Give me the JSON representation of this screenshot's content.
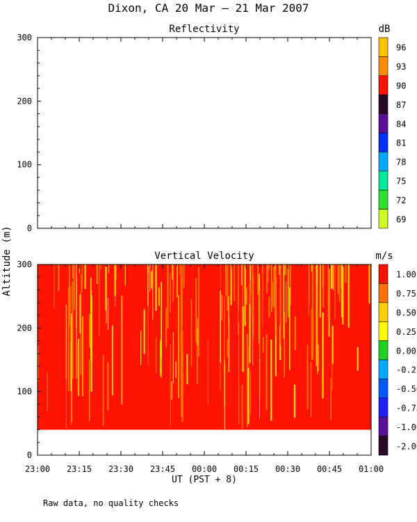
{
  "title": "Dixon, CA 20 Mar — 21 Mar 2007",
  "ylabel": "Altitude (m)",
  "xlabel": "UT  (PST + 8)",
  "footnote": "Raw data, no quality checks",
  "x_ticks": [
    "23:00",
    "23:15",
    "23:30",
    "23:45",
    "00:00",
    "00:15",
    "00:30",
    "00:45",
    "01:00"
  ],
  "chart_data": [
    {
      "type": "heatmap",
      "title": "Reflectivity",
      "unit": "dB",
      "xlim": [
        "23:00",
        "01:00"
      ],
      "ylim": [
        0,
        300
      ],
      "y_ticks": [
        0,
        100,
        200,
        300
      ],
      "data": "empty",
      "colorbar": {
        "labels": [
          "96",
          "93",
          "90",
          "87",
          "84",
          "81",
          "78",
          "75",
          "72",
          "69"
        ],
        "colors": [
          "#ffc400",
          "#ff8c00",
          "#ff1200",
          "#2a0828",
          "#5b0f9a",
          "#0030ff",
          "#00a8ff",
          "#00e89a",
          "#30e030",
          "#ccff22"
        ]
      }
    },
    {
      "type": "heatmap",
      "title": "Vertical Velocity",
      "unit": "m/s",
      "xlim": [
        "23:00",
        "01:00"
      ],
      "ylim": [
        0,
        300
      ],
      "y_ticks": [
        0,
        100,
        200,
        300
      ],
      "data_altitude_range": [
        40,
        300
      ],
      "dominant_values": [
        1.0,
        0.75,
        0.5
      ],
      "colorbar": {
        "labels": [
          "1.00",
          "0.75",
          "0.50",
          "0.25",
          "0.00",
          "-0.25",
          "-0.50",
          "-0.75",
          "-1.00",
          "-2.00"
        ],
        "colors": [
          "#ff1200",
          "#ff7000",
          "#ffd000",
          "#ffff00",
          "#20d020",
          "#00a8ff",
          "#0058ff",
          "#2020ff",
          "#5b0f9a",
          "#2a0828"
        ]
      }
    }
  ]
}
